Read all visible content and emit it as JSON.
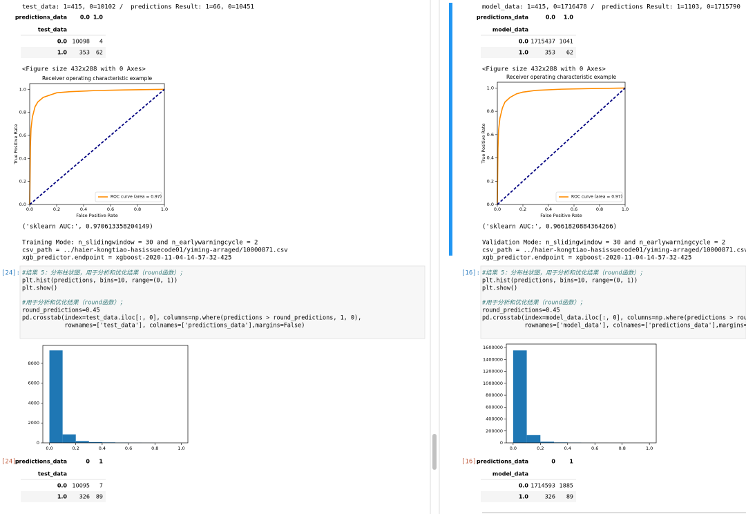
{
  "left": {
    "output_header": "test_data: 1=415, 0=10102 /  predictions Result: 1=66, 0=10451",
    "table1": {
      "col_header": "predictions_data",
      "cols": [
        "0.0",
        "1.0"
      ],
      "row_header": "test_data",
      "rows": [
        [
          "0.0",
          "10098",
          "4"
        ],
        [
          "1.0",
          "353",
          "62"
        ]
      ]
    },
    "figure_note": "<Figure size 432x288 with 0 Axes>",
    "roc": {
      "type": "line",
      "title": "Receiver operating characteristic example",
      "xlabel": "False Positive Rate",
      "ylabel": "True Positive Rate",
      "xlim": [
        0,
        1
      ],
      "ylim": [
        0,
        1.05
      ],
      "xticks": [
        {
          "value": 0,
          "label": "0.0"
        },
        {
          "value": 0.2,
          "label": "0.2"
        },
        {
          "value": 0.4,
          "label": "0.4"
        },
        {
          "value": 0.6,
          "label": "0.6"
        },
        {
          "value": 0.8,
          "label": "0.8"
        },
        {
          "value": 1,
          "label": "1.0"
        }
      ],
      "yticks": [
        {
          "value": 0,
          "label": "0.0"
        },
        {
          "value": 0.2,
          "label": "0.2"
        },
        {
          "value": 0.4,
          "label": "0.4"
        },
        {
          "value": 0.6,
          "label": "0.6"
        },
        {
          "value": 0.8,
          "label": "0.8"
        },
        {
          "value": 1,
          "label": "1.0"
        }
      ],
      "legend": "lower right",
      "series": [
        {
          "name": "ROC curve (area = 0.97)",
          "color": "#ff8c00",
          "x": [
            0,
            0.005,
            0.01,
            0.02,
            0.04,
            0.06,
            0.1,
            0.15,
            0.2,
            0.3,
            0.5,
            0.7,
            1
          ],
          "values": [
            0,
            0.5,
            0.66,
            0.76,
            0.85,
            0.89,
            0.93,
            0.95,
            0.97,
            0.98,
            0.99,
            0.995,
            1
          ]
        },
        {
          "color": "#000080",
          "dashed": true,
          "x": [
            0,
            1
          ],
          "values": [
            0,
            1
          ]
        }
      ]
    },
    "auc": "('sklearn AUC:', 0.970613358204149)",
    "mode_lines": [
      "Training Mode: n_slidingwindow = 30 and n_earlywarningcycle = 2",
      "csv_path = ../haier-kongtiao-hasissuecode01/yiming-arraged/10000871.csv",
      "xgb_predictor.endpoint = xgboost-2020-11-04-14-57-32-425"
    ],
    "in_prompt": "[24]:",
    "code_blocks": [
      [
        "#结果 5：分布柱状图，用于分析和优化结果（round函数）；",
        "plt.hist(predictions, bins=10, range=(0, 1))",
        "plt.show()"
      ],
      [
        "#用于分析和优化结果（round函数）；",
        "round_predictions=0.45",
        "pd.crosstab(index=test_data.iloc[:, 0], columns=np.where(predictions > round_predictions, 1, 0),",
        "            rownames=['test_data'], colnames=['predictions_data'],margins=False)"
      ]
    ],
    "hist": {
      "type": "histogram",
      "color": "#1f77b4",
      "bins": [
        0,
        0.1,
        0.2,
        0.3,
        0.4,
        0.5,
        0.6,
        0.7,
        0.8,
        0.9,
        1
      ],
      "values": [
        9300,
        850,
        180,
        80,
        50,
        30,
        15,
        8,
        3,
        1
      ],
      "xlim": [
        -0.05,
        1.05
      ],
      "ylim": [
        0,
        9800
      ],
      "xticks": [
        {
          "value": 0,
          "label": "0.0"
        },
        {
          "value": 0.2,
          "label": "0.2"
        },
        {
          "value": 0.4,
          "label": "0.4"
        },
        {
          "value": 0.6,
          "label": "0.6"
        },
        {
          "value": 0.8,
          "label": "0.8"
        },
        {
          "value": 1,
          "label": "1.0"
        }
      ],
      "yticks": [
        0,
        2000,
        4000,
        6000,
        8000
      ]
    },
    "out_prompt": "[24]:",
    "table2": {
      "col_header": "predictions_data",
      "cols": [
        "0",
        "1"
      ],
      "row_header": "test_data",
      "rows": [
        [
          "0.0",
          "10095",
          "7"
        ],
        [
          "1.0",
          "326",
          "89"
        ]
      ]
    }
  },
  "right": {
    "output_header": "model_data: 1=415, 0=1716478 /  predictions Result: 1=1103, 0=1715790",
    "table1": {
      "col_header": "predictions_data",
      "cols": [
        "0.0",
        "1.0"
      ],
      "row_header": "model_data",
      "rows": [
        [
          "0.0",
          "1715437",
          "1041"
        ],
        [
          "1.0",
          "353",
          "62"
        ]
      ]
    },
    "figure_note": "<Figure size 432x288 with 0 Axes>",
    "roc": {
      "type": "line",
      "title": "Receiver operating characteristic example",
      "xlabel": "False Positive Rate",
      "ylabel": "True Positive Rate",
      "xlim": [
        0,
        1
      ],
      "ylim": [
        0,
        1.05
      ],
      "xticks": [
        {
          "value": 0,
          "label": "0.0"
        },
        {
          "value": 0.2,
          "label": "0.2"
        },
        {
          "value": 0.4,
          "label": "0.4"
        },
        {
          "value": 0.6,
          "label": "0.6"
        },
        {
          "value": 0.8,
          "label": "0.8"
        },
        {
          "value": 1,
          "label": "1.0"
        }
      ],
      "yticks": [
        {
          "value": 0,
          "label": "0.0"
        },
        {
          "value": 0.2,
          "label": "0.2"
        },
        {
          "value": 0.4,
          "label": "0.4"
        },
        {
          "value": 0.6,
          "label": "0.6"
        },
        {
          "value": 0.8,
          "label": "0.8"
        },
        {
          "value": 1,
          "label": "1.0"
        }
      ],
      "legend": "lower right",
      "series": [
        {
          "name": "ROC curve (area = 0.97)",
          "color": "#ff8c00",
          "x": [
            0,
            0.005,
            0.01,
            0.02,
            0.04,
            0.06,
            0.1,
            0.15,
            0.2,
            0.3,
            0.5,
            0.7,
            1
          ],
          "values": [
            0,
            0.48,
            0.64,
            0.74,
            0.83,
            0.88,
            0.92,
            0.95,
            0.965,
            0.98,
            0.99,
            0.995,
            1
          ]
        },
        {
          "color": "#000080",
          "dashed": true,
          "x": [
            0,
            1
          ],
          "values": [
            0,
            1
          ]
        }
      ]
    },
    "auc": "('sklearn AUC:', 0.9661820884364266)",
    "mode_lines": [
      "Validation Mode: n_slidingwindow = 30 and n_earlywarningcycle = 2",
      "csv_path = ../haier-kongtiao-hasissuecode01/yiming-arraged/10000871.csv",
      "xgb_predictor.endpoint = xgboost-2020-11-04-14-57-32-425"
    ],
    "in_prompt": "[16]:",
    "code_blocks": [
      [
        "#结果 5：分布柱状图，用于分析和优化结果（round函数）；",
        "plt.hist(predictions, bins=10, range=(0, 1))",
        "plt.show()"
      ],
      [
        "#用于分析和优化结果（round函数）；",
        "round_predictions=0.45",
        "pd.crosstab(index=model_data.iloc[:, 0], columns=np.where(predictions > rou",
        "            rownames=['model_data'], colnames=['predictions_data'],margins="
      ]
    ],
    "hist": {
      "type": "histogram",
      "color": "#1f77b4",
      "bins": [
        0,
        0.1,
        0.2,
        0.3,
        0.4,
        0.5,
        0.6,
        0.7,
        0.8,
        0.9,
        1
      ],
      "values": [
        1553000,
        130000,
        19000,
        8000,
        4000,
        1500,
        700,
        200,
        60,
        18
      ],
      "xlim": [
        -0.05,
        1.05
      ],
      "ylim": [
        0,
        1660000
      ],
      "xticks": [
        {
          "value": 0,
          "label": "0.0"
        },
        {
          "value": 0.2,
          "label": "0.2"
        },
        {
          "value": 0.4,
          "label": "0.4"
        },
        {
          "value": 0.6,
          "label": "0.6"
        },
        {
          "value": 0.8,
          "label": "0.8"
        },
        {
          "value": 1,
          "label": "1.0"
        }
      ],
      "yticks": [
        0,
        200000,
        400000,
        600000,
        800000,
        1000000,
        1200000,
        1400000,
        1600000
      ]
    },
    "out_prompt": "[16]:",
    "table2": {
      "col_header": "predictions_data",
      "cols": [
        "0",
        "1"
      ],
      "row_header": "model_data",
      "rows": [
        [
          "0.0",
          "1714593",
          "1885"
        ],
        [
          "1.0",
          "326",
          "89"
        ]
      ]
    }
  }
}
